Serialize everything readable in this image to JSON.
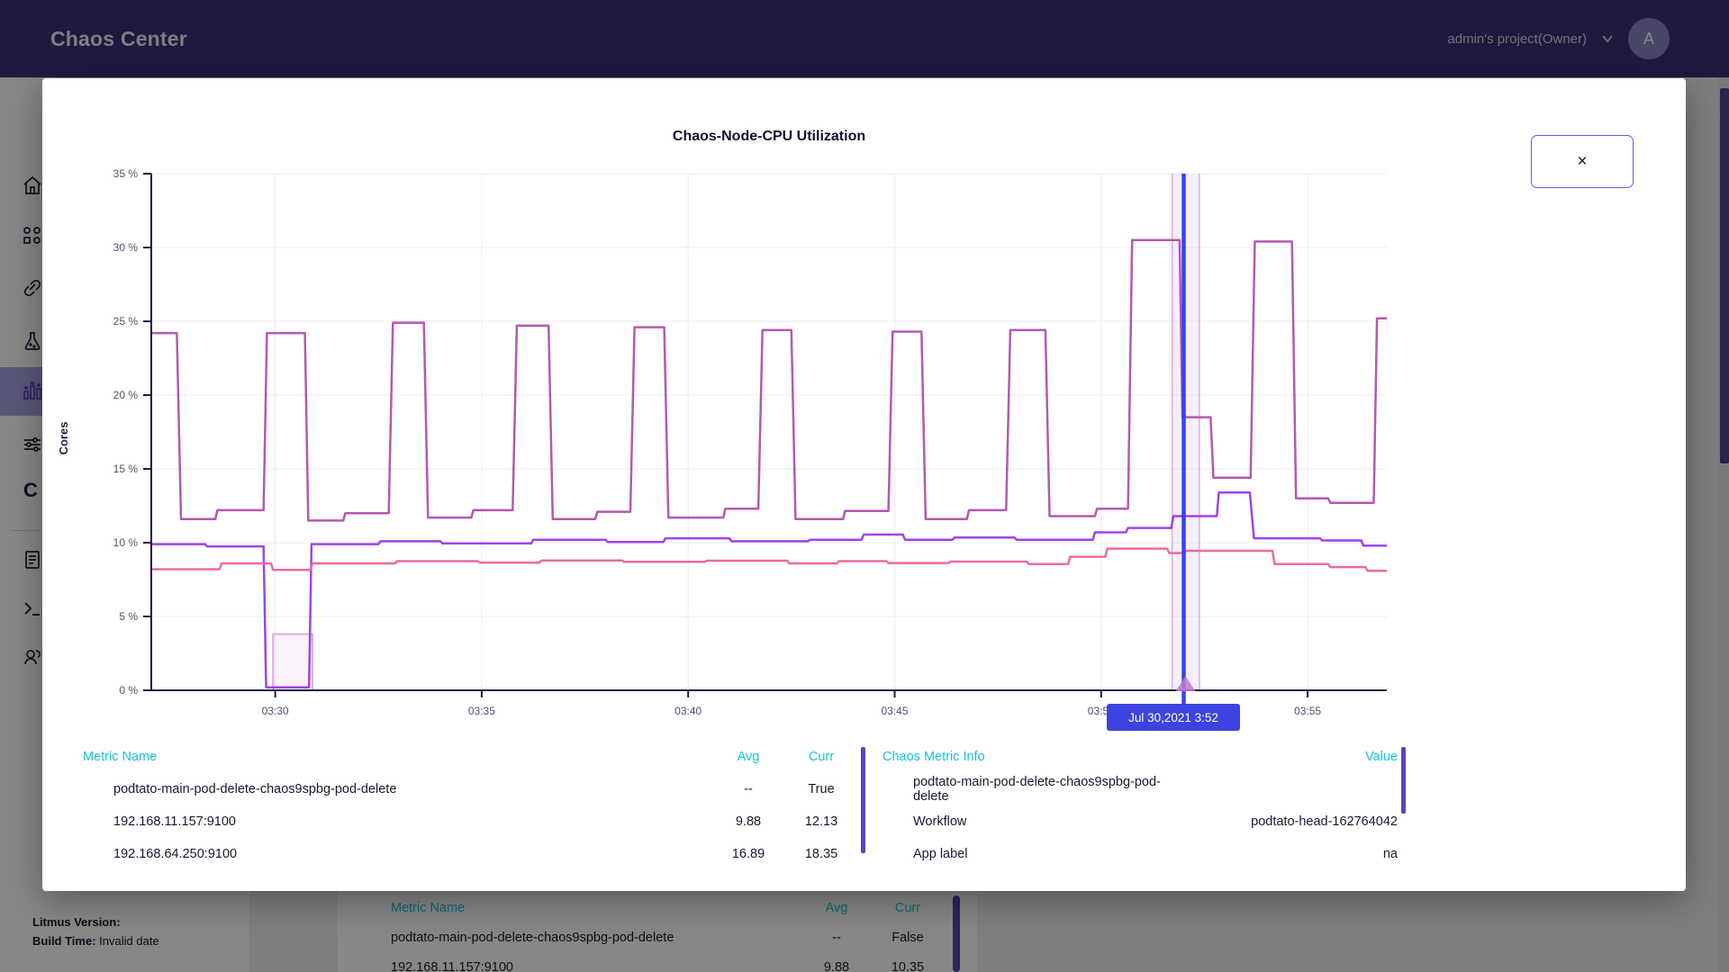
{
  "header": {
    "app_title": "Chaos Center",
    "project_selector": "admin's project(Owner)",
    "avatar_initial": "A"
  },
  "sidebar": {
    "icons": [
      "home",
      "workflows",
      "chaoshub",
      "experiments",
      "analytics",
      "settings",
      "c-label",
      "docs",
      "cli",
      "community"
    ],
    "c_label": "C",
    "selected": "analytics"
  },
  "background": {
    "footer": {
      "version_label": "Litmus Version:",
      "build_label": "Build Time:",
      "build_value": "Invalid date"
    },
    "metric_table": {
      "headers": [
        "Metric Name",
        "Avg",
        "Curr"
      ],
      "rows": [
        {
          "swatch": "#dba7de",
          "name": "podtato-main-pod-delete-chaos9spbg-pod-delete",
          "avg": "--",
          "curr": "False"
        },
        {
          "swatch": "#9b35d9",
          "name": "192.168.11.157:9100",
          "avg": "9.88",
          "curr": "10.35"
        }
      ]
    }
  },
  "modal": {
    "title": "Chaos-Node-CPU Utilization",
    "close_label": "×",
    "tooltip": "Jul 30,2021 3:52",
    "metric_table": {
      "headers": [
        "Metric Name",
        "Avg",
        "Curr"
      ],
      "rows": [
        {
          "swatch": "#dba7de",
          "name": "podtato-main-pod-delete-chaos9spbg-pod-delete",
          "avg": "--",
          "curr": "True"
        },
        {
          "swatch": "#9b35d9",
          "name": "192.168.11.157:9100",
          "avg": "9.88",
          "curr": "12.13"
        },
        {
          "swatch": "#a04f9b",
          "name": "192.168.64.250:9100",
          "avg": "16.89",
          "curr": "18.35"
        }
      ]
    },
    "chaos_table": {
      "headers": [
        "Chaos Metric Info",
        "Value"
      ],
      "rows": [
        {
          "swatch": "#dba7de",
          "label": "podtato-main-pod-delete-chaos9spbg-pod-delete",
          "value": ""
        },
        {
          "swatch": "",
          "label": "Workflow",
          "value": "podtato-head-162764042"
        },
        {
          "swatch": "",
          "label": "App label",
          "value": "na"
        }
      ]
    }
  },
  "chart_data": {
    "type": "line",
    "title": "Chaos-Node-CPU Utilization",
    "ylabel": "Cores",
    "ylim": [
      0,
      35
    ],
    "y_ticks": [
      "0 %",
      "5 %",
      "10 %",
      "15 %",
      "20 %",
      "25 %",
      "30 %",
      "35 %"
    ],
    "x_ticks": [
      "03:30",
      "03:35",
      "03:40",
      "03:45",
      "03:50",
      "03:55"
    ],
    "x_domain_minutes": [
      27.0,
      56.9
    ],
    "grid": true,
    "legend_position": "bottom",
    "cursor": {
      "time_min": 52.0,
      "label": "Jul 30,2021 3:52",
      "color": "#3a41f0"
    },
    "chaos_band": {
      "from_min": 51.72,
      "to_min": 52.38,
      "color": "#b273e0",
      "marker_color": "#c17fcf"
    },
    "chaos_pulse": {
      "from_min": 29.95,
      "to_min": 30.9,
      "height_pct": 3.8,
      "color": "#dfa8dd"
    },
    "series": [
      {
        "name": "192.168.64.250:9100",
        "color": "#b35aad",
        "points": [
          [
            27.0,
            24.2
          ],
          [
            27.62,
            24.2
          ],
          [
            27.72,
            11.6
          ],
          [
            28.55,
            11.6
          ],
          [
            28.6,
            12.2
          ],
          [
            29.72,
            12.2
          ],
          [
            29.8,
            24.2
          ],
          [
            30.72,
            24.2
          ],
          [
            30.8,
            11.5
          ],
          [
            31.65,
            11.5
          ],
          [
            31.7,
            12.0
          ],
          [
            32.75,
            12.0
          ],
          [
            32.85,
            24.9
          ],
          [
            33.6,
            24.9
          ],
          [
            33.7,
            11.7
          ],
          [
            34.75,
            11.7
          ],
          [
            34.8,
            12.2
          ],
          [
            35.75,
            12.2
          ],
          [
            35.85,
            24.7
          ],
          [
            36.62,
            24.7
          ],
          [
            36.72,
            11.6
          ],
          [
            37.75,
            11.6
          ],
          [
            37.8,
            12.1
          ],
          [
            38.6,
            12.1
          ],
          [
            38.7,
            24.6
          ],
          [
            39.42,
            24.6
          ],
          [
            39.52,
            11.7
          ],
          [
            40.85,
            11.7
          ],
          [
            40.9,
            12.3
          ],
          [
            41.7,
            12.3
          ],
          [
            41.8,
            24.4
          ],
          [
            42.5,
            24.4
          ],
          [
            42.6,
            11.6
          ],
          [
            43.75,
            11.6
          ],
          [
            43.8,
            12.15
          ],
          [
            44.85,
            12.15
          ],
          [
            44.95,
            24.3
          ],
          [
            45.65,
            24.3
          ],
          [
            45.75,
            11.6
          ],
          [
            46.75,
            11.6
          ],
          [
            46.8,
            12.2
          ],
          [
            47.7,
            12.2
          ],
          [
            47.8,
            24.4
          ],
          [
            48.65,
            24.4
          ],
          [
            48.75,
            11.8
          ],
          [
            49.85,
            11.8
          ],
          [
            49.9,
            12.3
          ],
          [
            50.65,
            12.3
          ],
          [
            50.75,
            30.5
          ],
          [
            51.9,
            30.5
          ],
          [
            51.97,
            18.5
          ],
          [
            52.65,
            18.5
          ],
          [
            52.72,
            14.4
          ],
          [
            53.62,
            14.4
          ],
          [
            53.72,
            30.4
          ],
          [
            54.62,
            30.4
          ],
          [
            54.72,
            13.0
          ],
          [
            55.5,
            13.0
          ],
          [
            55.55,
            12.7
          ],
          [
            56.6,
            12.7
          ],
          [
            56.68,
            25.2
          ],
          [
            56.9,
            25.2
          ]
        ]
      },
      {
        "name": "192.168.11.157:9100",
        "color": "#a044e3",
        "points": [
          [
            27.0,
            9.9
          ],
          [
            28.3,
            9.9
          ],
          [
            28.35,
            9.75
          ],
          [
            29.72,
            9.75
          ],
          [
            29.78,
            0.2
          ],
          [
            30.82,
            0.2
          ],
          [
            30.88,
            9.9
          ],
          [
            32.5,
            9.9
          ],
          [
            32.55,
            10.1
          ],
          [
            34.0,
            10.1
          ],
          [
            34.05,
            9.95
          ],
          [
            36.2,
            9.95
          ],
          [
            36.25,
            10.2
          ],
          [
            38.0,
            10.2
          ],
          [
            38.05,
            10.05
          ],
          [
            39.4,
            10.05
          ],
          [
            39.45,
            10.3
          ],
          [
            41.0,
            10.3
          ],
          [
            41.05,
            10.1
          ],
          [
            42.9,
            10.1
          ],
          [
            42.95,
            10.2
          ],
          [
            44.2,
            10.2
          ],
          [
            44.25,
            10.55
          ],
          [
            45.2,
            10.55
          ],
          [
            45.25,
            10.2
          ],
          [
            46.4,
            10.2
          ],
          [
            46.45,
            10.35
          ],
          [
            47.9,
            10.35
          ],
          [
            47.95,
            10.2
          ],
          [
            49.8,
            10.2
          ],
          [
            49.85,
            10.7
          ],
          [
            50.6,
            10.7
          ],
          [
            50.65,
            11.0
          ],
          [
            51.7,
            11.0
          ],
          [
            51.75,
            11.8
          ],
          [
            52.8,
            11.8
          ],
          [
            52.85,
            13.4
          ],
          [
            53.6,
            13.4
          ],
          [
            53.7,
            10.3
          ],
          [
            55.3,
            10.3
          ],
          [
            55.35,
            10.15
          ],
          [
            56.3,
            10.15
          ],
          [
            56.35,
            9.8
          ],
          [
            56.9,
            9.8
          ]
        ]
      },
      {
        "name": "",
        "color": "#ec6a9f",
        "points": [
          [
            27.0,
            8.2
          ],
          [
            28.65,
            8.2
          ],
          [
            28.7,
            8.6
          ],
          [
            29.9,
            8.6
          ],
          [
            29.95,
            8.15
          ],
          [
            30.85,
            8.15
          ],
          [
            30.9,
            8.6
          ],
          [
            32.9,
            8.6
          ],
          [
            32.95,
            8.75
          ],
          [
            34.9,
            8.75
          ],
          [
            34.95,
            8.65
          ],
          [
            36.4,
            8.65
          ],
          [
            36.45,
            8.8
          ],
          [
            38.4,
            8.8
          ],
          [
            38.45,
            8.7
          ],
          [
            40.4,
            8.7
          ],
          [
            40.45,
            8.78
          ],
          [
            42.4,
            8.78
          ],
          [
            42.45,
            8.6
          ],
          [
            43.6,
            8.6
          ],
          [
            43.65,
            8.75
          ],
          [
            44.8,
            8.75
          ],
          [
            44.85,
            8.62
          ],
          [
            46.3,
            8.62
          ],
          [
            46.35,
            8.72
          ],
          [
            48.2,
            8.72
          ],
          [
            48.25,
            8.55
          ],
          [
            49.2,
            8.55
          ],
          [
            49.25,
            9.05
          ],
          [
            50.1,
            9.05
          ],
          [
            50.15,
            9.6
          ],
          [
            51.6,
            9.6
          ],
          [
            51.65,
            9.3
          ],
          [
            52.0,
            9.3
          ],
          [
            52.05,
            9.45
          ],
          [
            54.15,
            9.45
          ],
          [
            54.2,
            8.55
          ],
          [
            55.5,
            8.55
          ],
          [
            55.55,
            8.35
          ],
          [
            56.4,
            8.35
          ],
          [
            56.45,
            8.1
          ],
          [
            56.9,
            8.1
          ]
        ]
      }
    ]
  }
}
